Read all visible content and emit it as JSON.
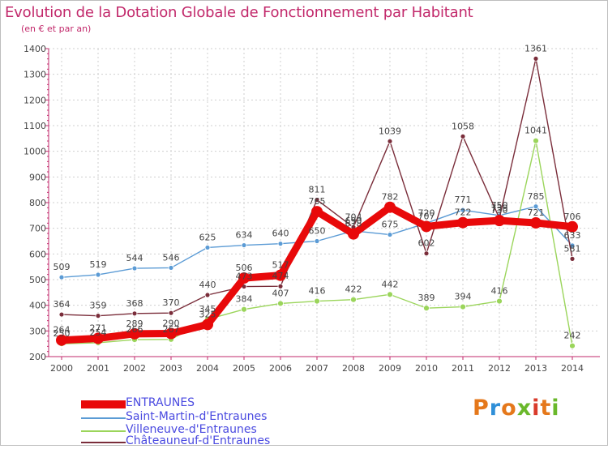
{
  "title": "Evolution de la Dotation Globale de Fonctionnement par Habitant",
  "subtitle": "(en € et par an)",
  "logo": {
    "text": "Proxiti",
    "colors": [
      "#e5781b",
      "#2f8fd8",
      "#e5781b",
      "#6ab82b",
      "#d93a2b",
      "#e5781b",
      "#6ab82b"
    ]
  },
  "chart_data": {
    "type": "line",
    "x": [
      2000,
      2001,
      2002,
      2003,
      2004,
      2005,
      2006,
      2007,
      2008,
      2009,
      2010,
      2011,
      2012,
      2013,
      2014
    ],
    "ylim": [
      200,
      1400
    ],
    "yticks": [
      200,
      300,
      400,
      500,
      600,
      700,
      800,
      900,
      1000,
      1100,
      1200,
      1300,
      1400
    ],
    "grid": true,
    "legend_position": "bottom",
    "series": [
      {
        "name": "ENTRAUNES",
        "color": "#e8090a",
        "width": 9,
        "point_radius": 7,
        "values": [
          264,
          271,
          289,
          290,
          325,
          506,
          517,
          765,
          678,
          782,
          707,
          722,
          730,
          721,
          706
        ],
        "labels": [
          "264",
          "271",
          "289",
          "290",
          "325",
          "506",
          "517",
          "765",
          "678",
          "782",
          "707",
          "722",
          "730",
          "721",
          "706"
        ]
      },
      {
        "name": "Saint-Martin-d'Entraunes",
        "color": "#5b9bd5",
        "width": 1.4,
        "point_radius": 3,
        "values": [
          509,
          519,
          544,
          546,
          625,
          634,
          640,
          650,
          690,
          675,
          720,
          771,
          750,
          785,
          633
        ],
        "labels": [
          "509",
          "519",
          "544",
          "546",
          "625",
          "634",
          "640",
          "650",
          "690",
          "675",
          "720",
          "771",
          "750",
          "785",
          "633"
        ]
      },
      {
        "name": "Villeneuve-d'Entraunes",
        "color": "#9bd55b",
        "width": 1.4,
        "point_radius": 3.5,
        "values": [
          250,
          254,
          266,
          267,
          345,
          384,
          407,
          416,
          422,
          442,
          389,
          394,
          416,
          1041,
          242
        ],
        "labels": [
          "250",
          "254",
          "266",
          "267",
          "345",
          "384",
          "407",
          "416",
          "422",
          "442",
          "389",
          "394",
          "416",
          "1041",
          "242"
        ]
      },
      {
        "name": "Châteauneuf-d'Entraunes",
        "color": "#7a2d3a",
        "width": 1.4,
        "point_radius": 3,
        "values": [
          364,
          359,
          368,
          370,
          440,
          473,
          474,
          811,
          704,
          1039,
          602,
          1058,
          739,
          1361,
          581
        ],
        "labels": [
          "364",
          "359",
          "368",
          "370",
          "440",
          "473",
          "474",
          "811",
          "704",
          "1039",
          "602",
          "1058",
          "739",
          "1361",
          "581"
        ]
      }
    ]
  }
}
